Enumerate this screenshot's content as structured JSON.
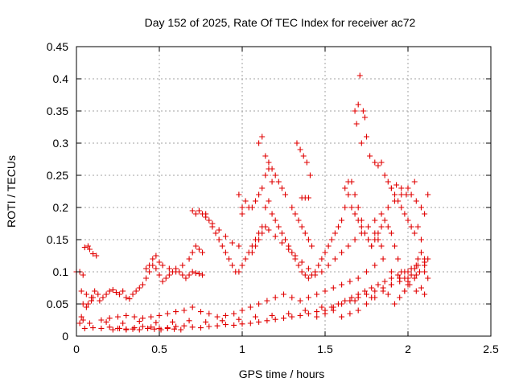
{
  "chart_data": {
    "type": "scatter",
    "title": "Day 152 of 2025, Rate Of TEC Index for receiver ac72",
    "xlabel": "GPS time / hours",
    "ylabel": "ROTI / TECUs",
    "xlim": [
      0,
      2.5
    ],
    "ylim": [
      0,
      0.45
    ],
    "xticks": [
      "0",
      "0.5",
      "1",
      "1.5",
      "2",
      "2.5"
    ],
    "yticks": [
      "0",
      "0.05",
      "0.1",
      "0.15",
      "0.2",
      "0.25",
      "0.3",
      "0.35",
      "0.4",
      "0.45"
    ],
    "grid": true,
    "marker": "+",
    "series_color": "#e00000",
    "series": [
      {
        "x": [
          0.0,
          0.02,
          0.04,
          0.05,
          0.07,
          0.08,
          0.1,
          0.12,
          0.03,
          0.06,
          0.09,
          0.11,
          0.13,
          0.04,
          0.06,
          0.07,
          0.09,
          0.1,
          0.02,
          0.03,
          0.04,
          0.14,
          0.16,
          0.18,
          0.2,
          0.22,
          0.24,
          0.26,
          0.28,
          0.3,
          0.32,
          0.34,
          0.36,
          0.38,
          0.4,
          0.42,
          0.44,
          0.46,
          0.48,
          0.5,
          0.52,
          0.54,
          0.56,
          0.58,
          0.6,
          0.62,
          0.64,
          0.66,
          0.68,
          0.7,
          0.72,
          0.74,
          0.76,
          0.78,
          0.8,
          0.82,
          0.84,
          0.86,
          0.88,
          0.9,
          0.92,
          0.94,
          0.96,
          0.98,
          1.0,
          1.02,
          1.04,
          1.06,
          1.08,
          1.1,
          1.12,
          1.14,
          1.16,
          1.18,
          1.2,
          1.22,
          1.24,
          1.26,
          1.28,
          1.3,
          1.32,
          1.34,
          1.36,
          1.38,
          1.4,
          1.42,
          1.44,
          1.46,
          1.48,
          1.5,
          1.52,
          1.54,
          1.56,
          1.58,
          1.6,
          1.62,
          1.64,
          1.66,
          1.68,
          1.7,
          1.72,
          1.74,
          1.76,
          1.78,
          1.8,
          1.82,
          1.84,
          1.86,
          1.88,
          1.9,
          1.92,
          1.94,
          1.96,
          1.98,
          2.0,
          2.02,
          2.04,
          2.06,
          2.08,
          2.1,
          2.12,
          0.15,
          0.2,
          0.25,
          0.3,
          0.35,
          0.4,
          0.45,
          0.5,
          0.55,
          0.6,
          0.65,
          0.7,
          0.75,
          0.8,
          0.85,
          0.9,
          0.95,
          1.0,
          1.05,
          1.1,
          1.15,
          1.2,
          1.25,
          1.3,
          1.35,
          1.4,
          1.45,
          1.5,
          1.55,
          1.6,
          1.65,
          1.7,
          1.75,
          1.8,
          1.85,
          1.9,
          1.95,
          2.0,
          2.05,
          2.1,
          0.42,
          0.44,
          0.46,
          0.48,
          0.5,
          0.52,
          0.56,
          0.6,
          0.64,
          0.68,
          0.7,
          0.72,
          0.74,
          0.76,
          0.7,
          0.72,
          0.74,
          0.76,
          0.78,
          0.82,
          0.86,
          0.9,
          0.94,
          0.98,
          1.0,
          1.02,
          1.04,
          0.98,
          1.0,
          1.06,
          1.08,
          1.1,
          1.12,
          1.14,
          1.16,
          1.18,
          1.1,
          1.12,
          1.14,
          1.16,
          1.18,
          1.2,
          1.22,
          1.24,
          1.26,
          1.3,
          1.32,
          1.34,
          1.36,
          1.38,
          1.4,
          1.42,
          1.33,
          1.35,
          1.37,
          1.39,
          1.41,
          1.36,
          1.38,
          1.4,
          1.06,
          1.08,
          1.1,
          1.12,
          1.14,
          1.16,
          1.2,
          1.24,
          1.28,
          1.32,
          1.36,
          1.4,
          1.44,
          1.48,
          1.52,
          1.56,
          1.6,
          1.64,
          1.68,
          1.72,
          1.76,
          1.8,
          1.84,
          1.88,
          1.92,
          1.96,
          2.0,
          2.04,
          1.62,
          1.64,
          1.66,
          1.68,
          1.7,
          1.72,
          1.74,
          1.76,
          1.78,
          1.8,
          1.82,
          1.84,
          1.68,
          1.7,
          1.72,
          1.74,
          1.71,
          1.73,
          1.69,
          1.75,
          1.77,
          1.8,
          1.82,
          1.84,
          1.86,
          1.88,
          1.9,
          1.92,
          1.94,
          1.96,
          1.98,
          2.0,
          2.02,
          2.04,
          2.06,
          2.08,
          1.9,
          1.93,
          1.96,
          1.99,
          2.02,
          2.05,
          2.08,
          2.1,
          2.12,
          1.92,
          1.95,
          1.98,
          2.01,
          2.04,
          2.07,
          2.1,
          2.12,
          1.5,
          1.54,
          1.58,
          1.62,
          1.66,
          1.7,
          1.74,
          1.78,
          1.82,
          1.86,
          1.9,
          1.94,
          1.98,
          2.02,
          2.06,
          2.1,
          0.05,
          0.1,
          0.15,
          0.2,
          0.25,
          0.3,
          0.35,
          0.4,
          0.45,
          0.5,
          0.55,
          0.6,
          0.65,
          0.7,
          0.75,
          0.8,
          0.85,
          0.9,
          0.95,
          1.0,
          1.05,
          1.1,
          1.15,
          1.2,
          1.25,
          1.3,
          1.35,
          1.4,
          1.45,
          1.5,
          1.55,
          1.6,
          1.65,
          1.7,
          1.75,
          1.8,
          1.85,
          1.9,
          1.95,
          2.0,
          2.05,
          2.1,
          0.08,
          0.18,
          0.28,
          0.38,
          0.48,
          0.58,
          0.68,
          0.78,
          0.88,
          0.98,
          1.08,
          1.18,
          1.28,
          1.38,
          1.48,
          1.58,
          1.68,
          1.78,
          1.88,
          1.98,
          2.08,
          1.45,
          1.5,
          1.55,
          1.6,
          1.65,
          1.7,
          1.75,
          1.8,
          1.85,
          1.9,
          1.95,
          2.0,
          2.05,
          2.1,
          0.22,
          0.26,
          0.3,
          0.34,
          0.38,
          0.43,
          0.47,
          0.51,
          0.55,
          0.59,
          0.63
        ],
        "y": [
          0.1,
          0.1,
          0.095,
          0.138,
          0.14,
          0.135,
          0.128,
          0.125,
          0.07,
          0.065,
          0.06,
          0.07,
          0.065,
          0.05,
          0.045,
          0.05,
          0.055,
          0.06,
          0.02,
          0.03,
          0.025,
          0.055,
          0.06,
          0.065,
          0.07,
          0.072,
          0.068,
          0.065,
          0.07,
          0.06,
          0.058,
          0.065,
          0.07,
          0.075,
          0.08,
          0.09,
          0.1,
          0.11,
          0.105,
          0.095,
          0.085,
          0.09,
          0.095,
          0.1,
          0.105,
          0.1,
          0.095,
          0.09,
          0.095,
          0.1,
          0.098,
          0.097,
          0.095,
          0.19,
          0.18,
          0.17,
          0.16,
          0.15,
          0.14,
          0.13,
          0.12,
          0.11,
          0.1,
          0.1,
          0.11,
          0.12,
          0.13,
          0.14,
          0.15,
          0.16,
          0.17,
          0.2,
          0.21,
          0.19,
          0.18,
          0.17,
          0.16,
          0.15,
          0.14,
          0.13,
          0.12,
          0.11,
          0.1,
          0.095,
          0.09,
          0.095,
          0.1,
          0.11,
          0.12,
          0.13,
          0.14,
          0.15,
          0.16,
          0.17,
          0.18,
          0.2,
          0.22,
          0.24,
          0.22,
          0.2,
          0.18,
          0.16,
          0.15,
          0.14,
          0.15,
          0.16,
          0.17,
          0.18,
          0.17,
          0.16,
          0.14,
          0.12,
          0.1,
          0.09,
          0.085,
          0.095,
          0.105,
          0.12,
          0.13,
          0.11,
          0.09,
          0.025,
          0.028,
          0.03,
          0.032,
          0.03,
          0.028,
          0.03,
          0.032,
          0.035,
          0.038,
          0.04,
          0.045,
          0.038,
          0.035,
          0.03,
          0.032,
          0.035,
          0.04,
          0.045,
          0.05,
          0.055,
          0.06,
          0.065,
          0.06,
          0.055,
          0.06,
          0.065,
          0.07,
          0.075,
          0.08,
          0.085,
          0.09,
          0.1,
          0.11,
          0.12,
          0.1,
          0.09,
          0.08,
          0.07,
          0.065,
          0.105,
          0.11,
          0.12,
          0.125,
          0.115,
          0.11,
          0.105,
          0.1,
          0.11,
          0.12,
          0.13,
          0.14,
          0.135,
          0.13,
          0.195,
          0.19,
          0.195,
          0.19,
          0.185,
          0.175,
          0.165,
          0.155,
          0.145,
          0.14,
          0.2,
          0.21,
          0.2,
          0.22,
          0.19,
          0.2,
          0.21,
          0.22,
          0.23,
          0.25,
          0.26,
          0.24,
          0.3,
          0.31,
          0.28,
          0.27,
          0.26,
          0.25,
          0.24,
          0.23,
          0.22,
          0.2,
          0.19,
          0.18,
          0.17,
          0.16,
          0.15,
          0.14,
          0.3,
          0.29,
          0.28,
          0.27,
          0.25,
          0.215,
          0.215,
          0.215,
          0.13,
          0.14,
          0.15,
          0.16,
          0.17,
          0.165,
          0.155,
          0.145,
          0.135,
          0.125,
          0.115,
          0.105,
          0.095,
          0.1,
          0.11,
          0.12,
          0.13,
          0.14,
          0.15,
          0.16,
          0.17,
          0.18,
          0.19,
          0.2,
          0.21,
          0.22,
          0.23,
          0.24,
          0.23,
          0.24,
          0.2,
          0.19,
          0.18,
          0.17,
          0.16,
          0.15,
          0.14,
          0.16,
          0.15,
          0.14,
          0.35,
          0.36,
          0.3,
          0.34,
          0.405,
          0.35,
          0.33,
          0.31,
          0.28,
          0.27,
          0.265,
          0.27,
          0.25,
          0.24,
          0.23,
          0.22,
          0.21,
          0.2,
          0.19,
          0.18,
          0.17,
          0.16,
          0.17,
          0.15,
          0.23,
          0.235,
          0.23,
          0.22,
          0.22,
          0.21,
          0.2,
          0.19,
          0.22,
          0.05,
          0.06,
          0.07,
          0.08,
          0.09,
          0.1,
          0.11,
          0.12,
          0.04,
          0.045,
          0.05,
          0.055,
          0.06,
          0.065,
          0.07,
          0.075,
          0.08,
          0.085,
          0.09,
          0.095,
          0.1,
          0.105,
          0.11,
          0.115,
          0.012,
          0.013,
          0.012,
          0.014,
          0.012,
          0.011,
          0.013,
          0.015,
          0.014,
          0.012,
          0.013,
          0.015,
          0.016,
          0.014,
          0.013,
          0.015,
          0.016,
          0.018,
          0.017,
          0.019,
          0.02,
          0.022,
          0.024,
          0.026,
          0.028,
          0.03,
          0.032,
          0.035,
          0.038,
          0.04,
          0.045,
          0.05,
          0.055,
          0.06,
          0.065,
          0.07,
          0.075,
          0.08,
          0.085,
          0.09,
          0.095,
          0.1,
          0.02,
          0.022,
          0.02,
          0.023,
          0.021,
          0.022,
          0.024,
          0.022,
          0.024,
          0.026,
          0.03,
          0.032,
          0.035,
          0.04,
          0.045,
          0.05,
          0.055,
          0.06,
          0.065,
          0.07,
          0.075,
          0.03,
          0.035,
          0.04,
          0.03,
          0.035,
          0.04,
          0.05,
          0.06,
          0.07,
          0.08,
          0.09,
          0.1,
          0.11,
          0.12,
          0.01,
          0.012,
          0.01,
          0.011,
          0.01,
          0.012,
          0.011,
          0.01,
          0.012,
          0.011,
          0.01
        ]
      }
    ]
  }
}
